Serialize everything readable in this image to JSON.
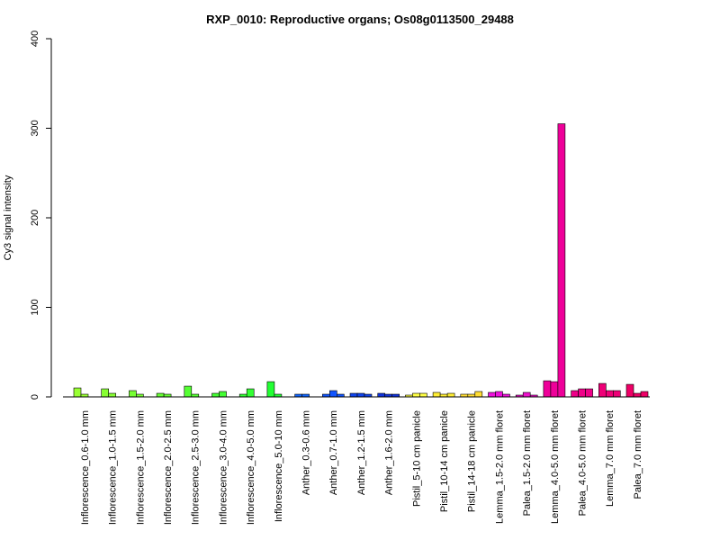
{
  "chart_data": {
    "type": "bar",
    "title": "RXP_0010: Reproductive organs; Os08g0113500_29488",
    "xlabel": "",
    "ylabel": "Cy3 signal intensity",
    "ylim": [
      0,
      400
    ],
    "yticks": [
      0,
      100,
      200,
      300,
      400
    ],
    "grid": false,
    "legend": "none",
    "categories": [
      "Inflorescence_0.6-1.0 mm",
      "Inflorescence_1.0-1.5 mm",
      "Inflorescence_1.5-2.0 mm",
      "Inflorescence_2.0-2.5 mm",
      "Inflorescence_2.5-3.0 mm",
      "Inflorescence_3.0-4.0 mm",
      "Inflorescence_4.0-5.0 mm",
      "Inflorescence_5.0-10 mm",
      "Anther_0.3-0.6 mm",
      "Anther_0.7-1.0 mm",
      "Anther_1.2-1.5 mm",
      "Anther_1.6-2.0 mm",
      "Pistil_5-10 cm panicle",
      "Pistil_10-14 cm panicle",
      "Pistil_14-18 cm panicle",
      "Lemma_1.5-2.0 mm floret",
      "Palea_1.5-2.0 mm floret",
      "Lemma_4.0-5.0 mm floret",
      "Palea_4.0-5.0 mm floret",
      "Lemma_7.0 mm floret",
      "Palea_7.0 mm floret"
    ],
    "groups": [
      {
        "color": "#99ff33",
        "values": [
          10,
          3
        ]
      },
      {
        "color": "#88ff33",
        "values": [
          9,
          4
        ]
      },
      {
        "color": "#77ff33",
        "values": [
          7,
          3
        ]
      },
      {
        "color": "#66ff33",
        "values": [
          4,
          3
        ]
      },
      {
        "color": "#55ff33",
        "values": [
          12,
          3
        ]
      },
      {
        "color": "#44ff33",
        "values": [
          4,
          6
        ]
      },
      {
        "color": "#33ff33",
        "values": [
          3,
          9
        ]
      },
      {
        "color": "#22ff33",
        "values": [
          17,
          3
        ]
      },
      {
        "color": "#1166ff",
        "values": [
          3,
          3
        ]
      },
      {
        "color": "#1155ff",
        "values": [
          3,
          7,
          3
        ]
      },
      {
        "color": "#1144ee",
        "values": [
          4,
          4,
          3
        ]
      },
      {
        "color": "#1133dd",
        "values": [
          4,
          3,
          3
        ]
      },
      {
        "color": "#ffff44",
        "values": [
          2,
          4,
          4
        ]
      },
      {
        "color": "#ffee33",
        "values": [
          5,
          3,
          4
        ]
      },
      {
        "color": "#ffdd33",
        "values": [
          3,
          3,
          6
        ]
      },
      {
        "color": "#ee11dd",
        "values": [
          5,
          6,
          3
        ]
      },
      {
        "color": "#ee11cc",
        "values": [
          2,
          5,
          2
        ]
      },
      {
        "color": "#ee0099",
        "values": [
          18,
          17,
          305
        ]
      },
      {
        "color": "#ee0088",
        "values": [
          7,
          9,
          9
        ]
      },
      {
        "color": "#ee0077",
        "values": [
          15,
          7,
          7
        ]
      },
      {
        "color": "#ee0066",
        "values": [
          14,
          4,
          6
        ]
      }
    ]
  }
}
